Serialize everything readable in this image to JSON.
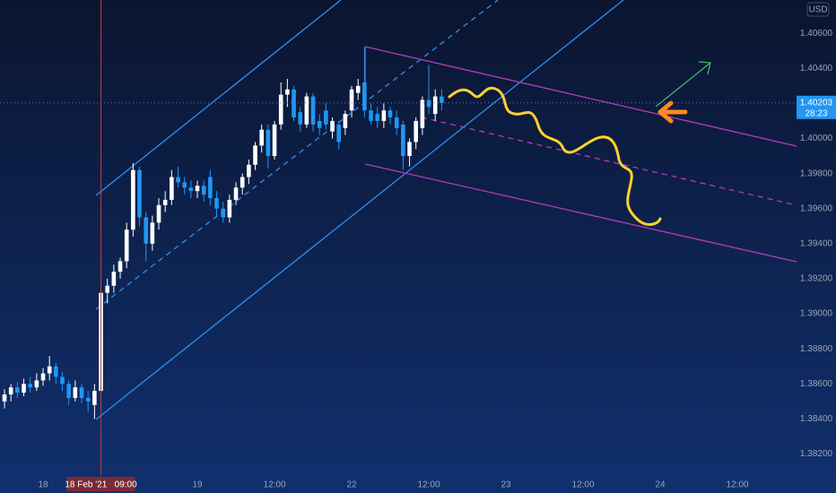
{
  "chart_data": {
    "type": "candlestick",
    "currency": "USD",
    "up_color": "#ffffff",
    "down_color": "#2196f3",
    "x": [
      -6,
      -5,
      -4,
      -3,
      -2,
      -1,
      0,
      1,
      2,
      3,
      4,
      5,
      6,
      7,
      8,
      9,
      10,
      11,
      12,
      13,
      14,
      15,
      16,
      17,
      18,
      19,
      20,
      21,
      22,
      23,
      24,
      25,
      26,
      27,
      28,
      29,
      30,
      31,
      32,
      33,
      34,
      35,
      36,
      37,
      38,
      39,
      40,
      41,
      42,
      43,
      44,
      45,
      46,
      47,
      48,
      49,
      50,
      51,
      52,
      53,
      54,
      55,
      56,
      57,
      58,
      59,
      60,
      61,
      62
    ],
    "open": [
      1.385,
      1.3854,
      1.3858,
      1.3855,
      1.386,
      1.3858,
      1.3862,
      1.3866,
      1.387,
      1.3864,
      1.386,
      1.3852,
      1.3858,
      1.3852,
      1.3848,
      1.3856,
      1.3912,
      1.3916,
      1.3924,
      1.393,
      1.3948,
      1.3982,
      1.3955,
      1.394,
      1.3952,
      1.3962,
      1.3965,
      1.3978,
      1.3975,
      1.3972,
      1.397,
      1.3973,
      1.3978,
      1.3966,
      1.396,
      1.3955,
      1.3965,
      1.3972,
      1.3978,
      1.3985,
      1.3996,
      1.4005,
      1.399,
      1.4008,
      1.4025,
      1.4028,
      1.4015,
      1.4008,
      1.4024,
      1.401,
      1.4016,
      1.4004,
      1.4008,
      1.4006,
      1.4016,
      1.4026,
      1.4032,
      1.4016,
      1.4014,
      1.401,
      1.4016,
      1.4012,
      1.4008,
      1.399,
      1.3998,
      1.4006,
      1.4022,
      1.4014,
      1.4024
    ],
    "high": [
      1.3857,
      1.386,
      1.3861,
      1.3863,
      1.3864,
      1.3866,
      1.3869,
      1.3876,
      1.3872,
      1.3867,
      1.3862,
      1.3862,
      1.386,
      1.3856,
      1.386,
      1.392,
      1.392,
      1.3928,
      1.3932,
      1.3952,
      1.3986,
      1.3984,
      1.3958,
      1.3956,
      1.3966,
      1.397,
      1.3982,
      1.3984,
      1.3978,
      1.3976,
      1.3976,
      1.3976,
      1.3982,
      1.397,
      1.3964,
      1.3968,
      1.3975,
      1.398,
      1.3988,
      1.3998,
      1.4008,
      1.4008,
      1.401,
      1.4032,
      1.4034,
      1.403,
      1.4018,
      1.4026,
      1.4026,
      1.4014,
      1.402,
      1.4012,
      1.401,
      1.4016,
      1.403,
      1.4034,
      1.4052,
      1.402,
      1.4018,
      1.402,
      1.4018,
      1.4016,
      1.401,
      1.4,
      1.4012,
      1.4024,
      1.4042,
      1.4028,
      1.4028
    ],
    "low": [
      1.3846,
      1.385,
      1.3852,
      1.3853,
      1.3855,
      1.3856,
      1.3859,
      1.3862,
      1.386,
      1.3856,
      1.3848,
      1.385,
      1.3849,
      1.3844,
      1.384,
      1.3852,
      1.3906,
      1.3912,
      1.392,
      1.3926,
      1.3944,
      1.395,
      1.393,
      1.3936,
      1.3948,
      1.3958,
      1.3962,
      1.3972,
      1.3968,
      1.3966,
      1.3966,
      1.3964,
      1.3962,
      1.3956,
      1.3952,
      1.3952,
      1.3962,
      1.3968,
      1.3974,
      1.3982,
      1.3992,
      1.3983,
      1.3988,
      1.4005,
      1.4018,
      1.401,
      1.4004,
      1.4006,
      1.4004,
      1.4002,
      1.4005,
      1.4,
      1.3994,
      1.4002,
      1.4012,
      1.4022,
      1.4012,
      1.4008,
      1.4006,
      1.4006,
      1.4008,
      1.4002,
      1.3982,
      1.3984,
      1.3994,
      1.4002,
      1.4014,
      1.401,
      1.4016
    ],
    "close": [
      1.3854,
      1.3858,
      1.3855,
      1.386,
      1.3858,
      1.3862,
      1.3866,
      1.387,
      1.3864,
      1.386,
      1.3852,
      1.3858,
      1.3852,
      1.385,
      1.3856,
      1.3912,
      1.3916,
      1.3924,
      1.393,
      1.3948,
      1.3982,
      1.3955,
      1.394,
      1.3952,
      1.3962,
      1.3965,
      1.3978,
      1.3975,
      1.3972,
      1.397,
      1.3973,
      1.3968,
      1.3966,
      1.396,
      1.3955,
      1.3965,
      1.3972,
      1.3978,
      1.3985,
      1.3996,
      1.4005,
      1.399,
      1.4008,
      1.4025,
      1.4028,
      1.4012,
      1.4008,
      1.4024,
      1.4008,
      1.4006,
      1.4008,
      1.401,
      1.3998,
      1.4014,
      1.4028,
      1.403,
      1.4016,
      1.401,
      1.401,
      1.4016,
      1.4012,
      1.4006,
      1.399,
      1.3998,
      1.401,
      1.4022,
      1.4018,
      1.4024,
      1.40203
    ],
    "xlim": [
      -6.7,
      117.2
    ],
    "ylim": [
      1.3808,
      1.4079
    ],
    "xticks": [
      {
        "value": 0,
        "label": "18"
      },
      {
        "value": 24,
        "label": "19"
      },
      {
        "value": 36,
        "label": "12:00"
      },
      {
        "value": 48,
        "label": "22"
      },
      {
        "value": 60,
        "label": "12:00"
      },
      {
        "value": 72,
        "label": "23"
      },
      {
        "value": 84,
        "label": "12:00"
      },
      {
        "value": 96,
        "label": "24"
      },
      {
        "value": 108,
        "label": "12:00"
      }
    ],
    "yticks": [
      {
        "value": 1.382,
        "label": "1.38200"
      },
      {
        "value": 1.384,
        "label": "1.38400"
      },
      {
        "value": 1.386,
        "label": "1.38600"
      },
      {
        "value": 1.388,
        "label": "1.38800"
      },
      {
        "value": 1.39,
        "label": "1.39000"
      },
      {
        "value": 1.392,
        "label": "1.39200"
      },
      {
        "value": 1.394,
        "label": "1.39400"
      },
      {
        "value": 1.396,
        "label": "1.39600"
      },
      {
        "value": 1.398,
        "label": "1.39800"
      },
      {
        "value": 1.4,
        "label": "1.40000"
      },
      {
        "value": 1.402,
        "label": "1.40200"
      },
      {
        "value": 1.404,
        "label": "1.40400"
      },
      {
        "value": 1.406,
        "label": "1.40600"
      }
    ],
    "last_price": {
      "value": 1.40203,
      "label": "1.40203"
    },
    "countdown": "28:23",
    "crosshair": {
      "x": 9,
      "label": "18 Feb '21   09:00"
    }
  }
}
